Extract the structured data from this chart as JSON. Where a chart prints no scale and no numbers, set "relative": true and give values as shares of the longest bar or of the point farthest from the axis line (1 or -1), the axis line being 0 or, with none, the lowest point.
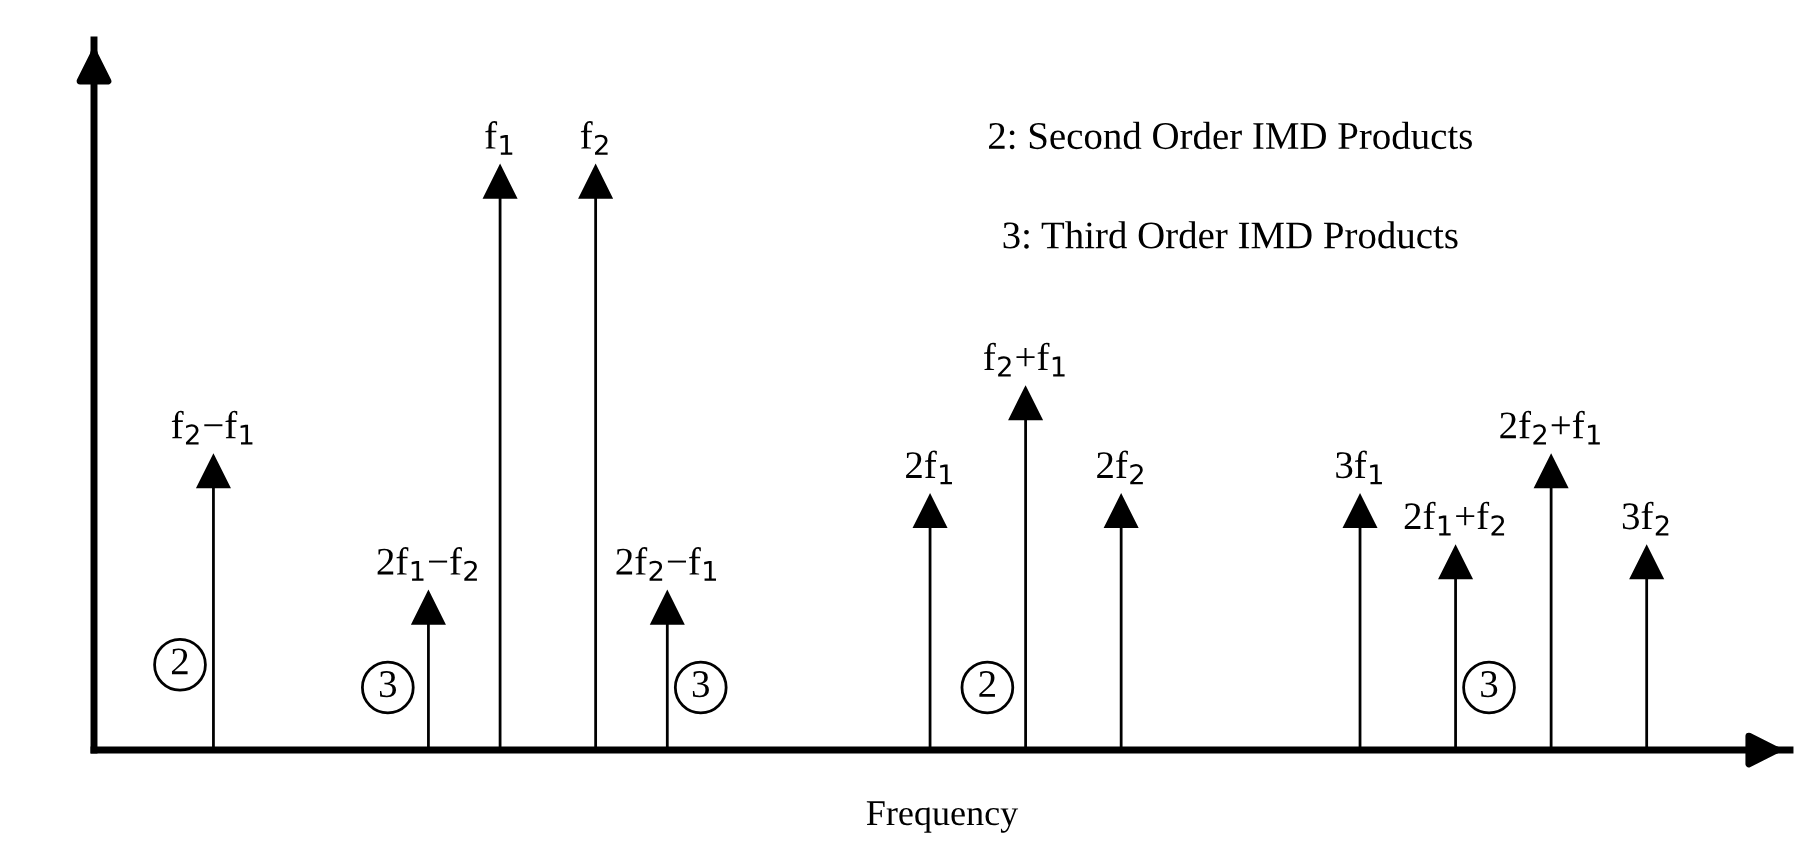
{
  "chart_data": {
    "type": "lollipop",
    "relative": true,
    "xlabel": "Frequency",
    "color": "#000000",
    "marker": "triangle",
    "categories": [
      "f$_{2}$−f$_{1}$",
      null,
      null,
      null,
      null,
      null,
      null,
      null,
      null,
      "2f$_{1}$−f$_{2}$",
      null,
      null,
      "f$_{1}$",
      null,
      null,
      null,
      "f$_{2}$",
      null,
      null,
      "2f$_{2}$−f$_{1}$",
      null,
      null,
      null,
      null,
      null,
      null,
      null,
      null,
      null,
      null,
      "2f$_{1}$",
      null,
      null,
      null,
      "f$_{2}$+f$_{1}$",
      null,
      null,
      null,
      "2f$_{2}$",
      null,
      null,
      null,
      null,
      null,
      null,
      null,
      null,
      null,
      "3f$_{1}$",
      null,
      null,
      null,
      "2f$_{1}$+f$_{2}$",
      null,
      null,
      null,
      "2f$_{2}$+f$_{1}$",
      null,
      null,
      null,
      "3f$_{2}$"
    ],
    "values": [
      0.49,
      null,
      null,
      null,
      null,
      null,
      null,
      null,
      null,
      0.25,
      null,
      null,
      1,
      null,
      null,
      null,
      1,
      null,
      null,
      0.25,
      null,
      null,
      null,
      null,
      null,
      null,
      null,
      null,
      null,
      null,
      0.42,
      null,
      null,
      null,
      0.61,
      null,
      null,
      null,
      0.42,
      null,
      null,
      null,
      null,
      null,
      null,
      null,
      null,
      null,
      0.42,
      null,
      null,
      null,
      0.33,
      null,
      null,
      null,
      0.49,
      null,
      null,
      null,
      0.33
    ],
    "annotations": [
      "2: Second Order IMD Products",
      "3: Third Order IMD Products",
      "2",
      "3",
      "3",
      "2",
      "3"
    ]
  }
}
